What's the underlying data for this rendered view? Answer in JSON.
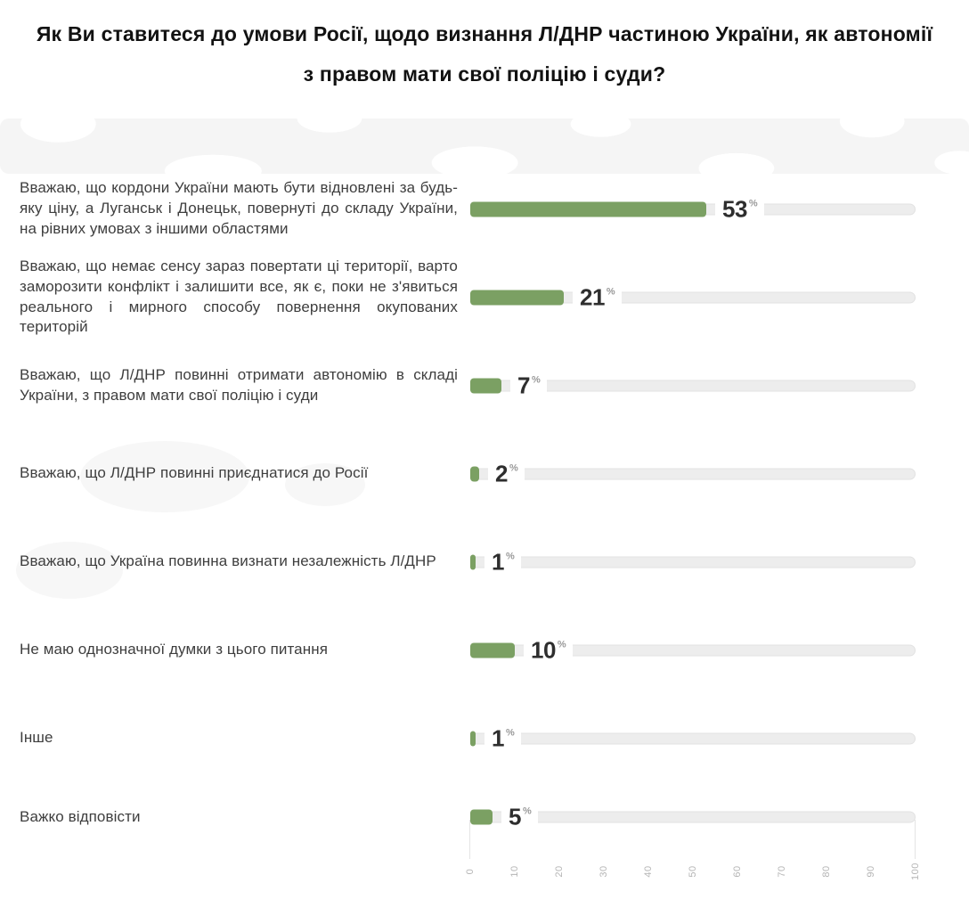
{
  "title": "Як Ви ставитеся до умови Росії, щодо визнання Л/ДНР частиною України, як автономії з правом мати свої поліцію і суди?",
  "chart_data": {
    "type": "bar",
    "orientation": "horizontal",
    "title": "Як Ви ставитеся до умови Росії, щодо визнання Л/ДНР частиною України, як автономії з правом мати свої поліцію і суди?",
    "categories": [
      "Вважаю, що кордони України мають бути відновлені за будь-яку ціну, а Луганськ і Донецьк, повернуті до складу України, на рівних умовах з іншими областя­ми",
      "Вважаю, що немає сенсу зараз повертати ці терито­рії, варто заморозити конфлікт і залишити все, як є, поки не з'явиться реального і мирного способу по­вернення окупованих територій",
      "Вважаю, що Л/ДНР повинні отримати автономію в складі України, з правом мати свої поліцію і суди",
      "Вважаю, що Л/ДНР повинні приєднатися до Росії",
      "Вважаю, що Україна повинна визнати незалеж­ність Л/ДНР",
      "Не маю однозначної думки з цього питання",
      "Інше",
      "Важко відповісти"
    ],
    "values": [
      53,
      21,
      7,
      2,
      1,
      10,
      1,
      5
    ],
    "unit": "%",
    "xlim": [
      0,
      100
    ],
    "x_ticks": [
      "0",
      "10",
      "20",
      "30",
      "40",
      "50",
      "60",
      "70",
      "80",
      "90",
      "100"
    ],
    "bar_color": "#7ba063",
    "track_color": "#ededed",
    "value_color": "#2e2e2e",
    "tick_color": "#b5b5b5",
    "grid": "off",
    "legend": "none"
  }
}
